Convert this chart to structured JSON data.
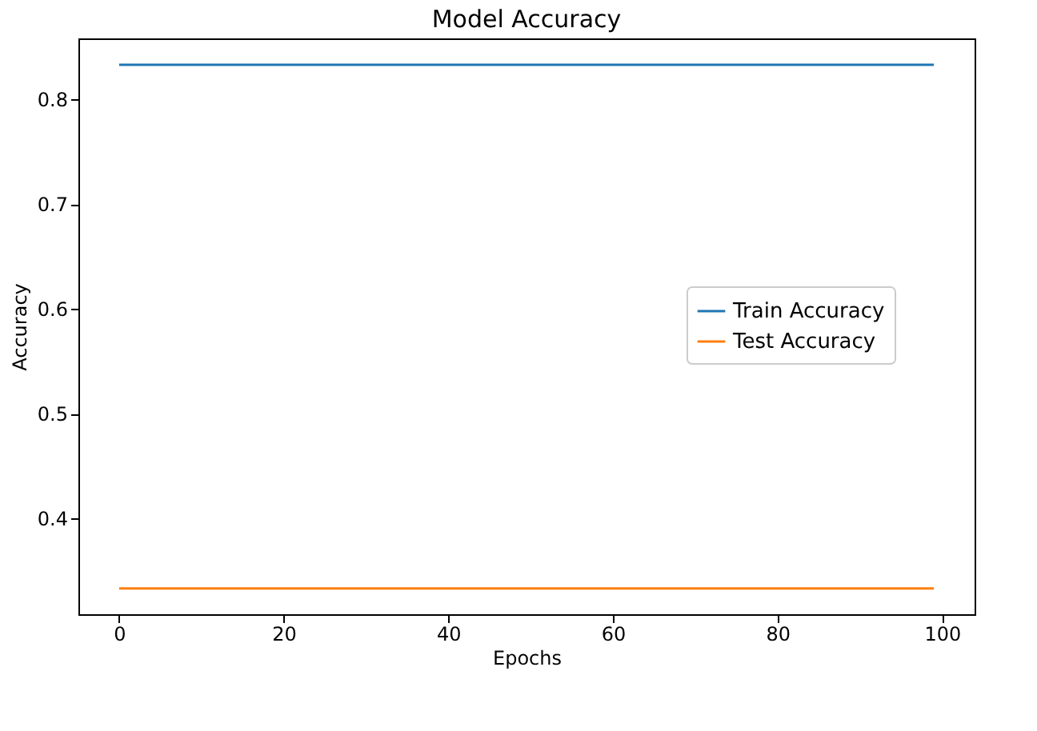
{
  "chart_data": {
    "type": "line",
    "title": "Model Accuracy",
    "xlabel": "Epochs",
    "ylabel": "Accuracy",
    "xlim": [
      -4.95,
      103.95
    ],
    "xticks": [
      0,
      20,
      40,
      60,
      80,
      100
    ],
    "ylim": [
      0.3083,
      0.8583
    ],
    "yticks": [
      0.4,
      0.5,
      0.6,
      0.7,
      0.8
    ],
    "x": [
      0,
      99
    ],
    "series": [
      {
        "name": "Train Accuracy",
        "color": "#1f77b4",
        "values": [
          0.833,
          0.833
        ]
      },
      {
        "name": "Test Accuracy",
        "color": "#ff7f0e",
        "values": [
          0.333,
          0.333
        ]
      }
    ],
    "legend": "center right",
    "grid": false,
    "marker": "none",
    "line_style": "solid"
  }
}
